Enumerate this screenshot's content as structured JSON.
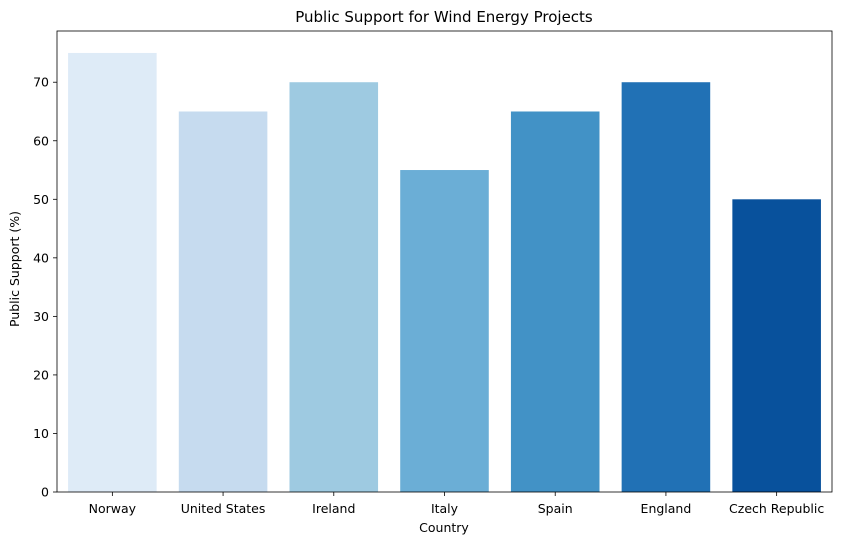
{
  "chart_data": {
    "type": "bar",
    "title": "Public Support for Wind Energy Projects",
    "xlabel": "Country",
    "ylabel": "Public Support (%)",
    "categories": [
      "Norway",
      "United States",
      "Ireland",
      "Italy",
      "Spain",
      "England",
      "Czech Republic"
    ],
    "values": [
      75,
      65,
      70,
      55,
      65,
      70,
      50
    ],
    "colors": [
      "#deebf7",
      "#c6dbef",
      "#9ecae1",
      "#6baed6",
      "#4292c6",
      "#2171b5",
      "#08519c"
    ],
    "ylim": [
      0,
      78.75
    ],
    "yticks": [
      0,
      10,
      20,
      30,
      40,
      50,
      60,
      70
    ],
    "grid": false,
    "legend": "none"
  }
}
